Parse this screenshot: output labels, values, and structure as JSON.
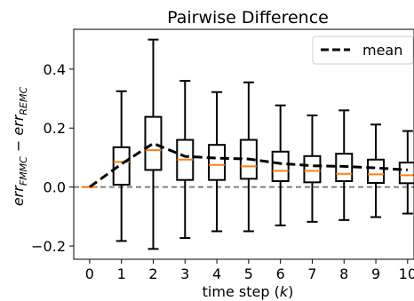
{
  "chart_data": {
    "type": "box",
    "title": "Pairwise Difference",
    "xlabel": "time step (k)",
    "xlabel_parts": {
      "main": "time step (",
      "var": "k",
      "end": ")"
    },
    "ylabel": "err_FMMC − err_REMC",
    "ylabel_parts": {
      "a": "err",
      "a_sub": "FMMC",
      "minus": " − ",
      "b": "err",
      "b_sub": "REMC"
    },
    "x_ticks": [
      "0",
      "1",
      "2",
      "3",
      "4",
      "5",
      "6",
      "7",
      "8",
      "9",
      "10"
    ],
    "y_ticks": [
      "0.4",
      "0.2",
      "0.0",
      "−0.2"
    ],
    "y_tick_values": [
      0.4,
      0.2,
      0.0,
      -0.2
    ],
    "xlim": [
      -0.5,
      10.2
    ],
    "ylim": [
      -0.245,
      0.535
    ],
    "grid": false,
    "legend": {
      "position": "top-right",
      "entries": [
        {
          "label": "mean",
          "style": "dashed",
          "color": "#000000"
        }
      ]
    },
    "reference_line": {
      "y": 0.0,
      "style": "dashed",
      "color": "#808080"
    },
    "median_color": "#ff7f0e",
    "boxes": [
      {
        "x": 0,
        "whislo": 0.0,
        "q1": 0.0,
        "med": 0.0,
        "q3": 0.0,
        "whishi": 0.0
      },
      {
        "x": 1,
        "whislo": -0.183,
        "q1": 0.008,
        "med": 0.085,
        "q3": 0.135,
        "whishi": 0.325
      },
      {
        "x": 2,
        "whislo": -0.21,
        "q1": 0.058,
        "med": 0.125,
        "q3": 0.238,
        "whishi": 0.5
      },
      {
        "x": 3,
        "whislo": -0.173,
        "q1": 0.024,
        "med": 0.093,
        "q3": 0.16,
        "whishi": 0.36
      },
      {
        "x": 4,
        "whislo": -0.15,
        "q1": 0.024,
        "med": 0.075,
        "q3": 0.143,
        "whishi": 0.322
      },
      {
        "x": 5,
        "whislo": -0.15,
        "q1": 0.028,
        "med": 0.07,
        "q3": 0.16,
        "whishi": 0.355
      },
      {
        "x": 6,
        "whislo": -0.13,
        "q1": 0.02,
        "med": 0.055,
        "q3": 0.12,
        "whishi": 0.277
      },
      {
        "x": 7,
        "whislo": -0.118,
        "q1": 0.016,
        "med": 0.055,
        "q3": 0.105,
        "whishi": 0.243
      },
      {
        "x": 8,
        "whislo": -0.112,
        "q1": 0.02,
        "med": 0.045,
        "q3": 0.113,
        "whishi": 0.26
      },
      {
        "x": 9,
        "whislo": -0.102,
        "q1": 0.014,
        "med": 0.043,
        "q3": 0.093,
        "whishi": 0.212
      },
      {
        "x": 10,
        "whislo": -0.09,
        "q1": 0.013,
        "med": 0.04,
        "q3": 0.083,
        "whishi": 0.19
      }
    ],
    "series": [
      {
        "name": "mean",
        "style": "dashed",
        "color": "#000000",
        "x": [
          0,
          1,
          2,
          3,
          4,
          5,
          6,
          7,
          8,
          9,
          10
        ],
        "y": [
          0.0,
          0.078,
          0.148,
          0.104,
          0.098,
          0.095,
          0.08,
          0.072,
          0.07,
          0.065,
          0.058
        ]
      }
    ]
  }
}
